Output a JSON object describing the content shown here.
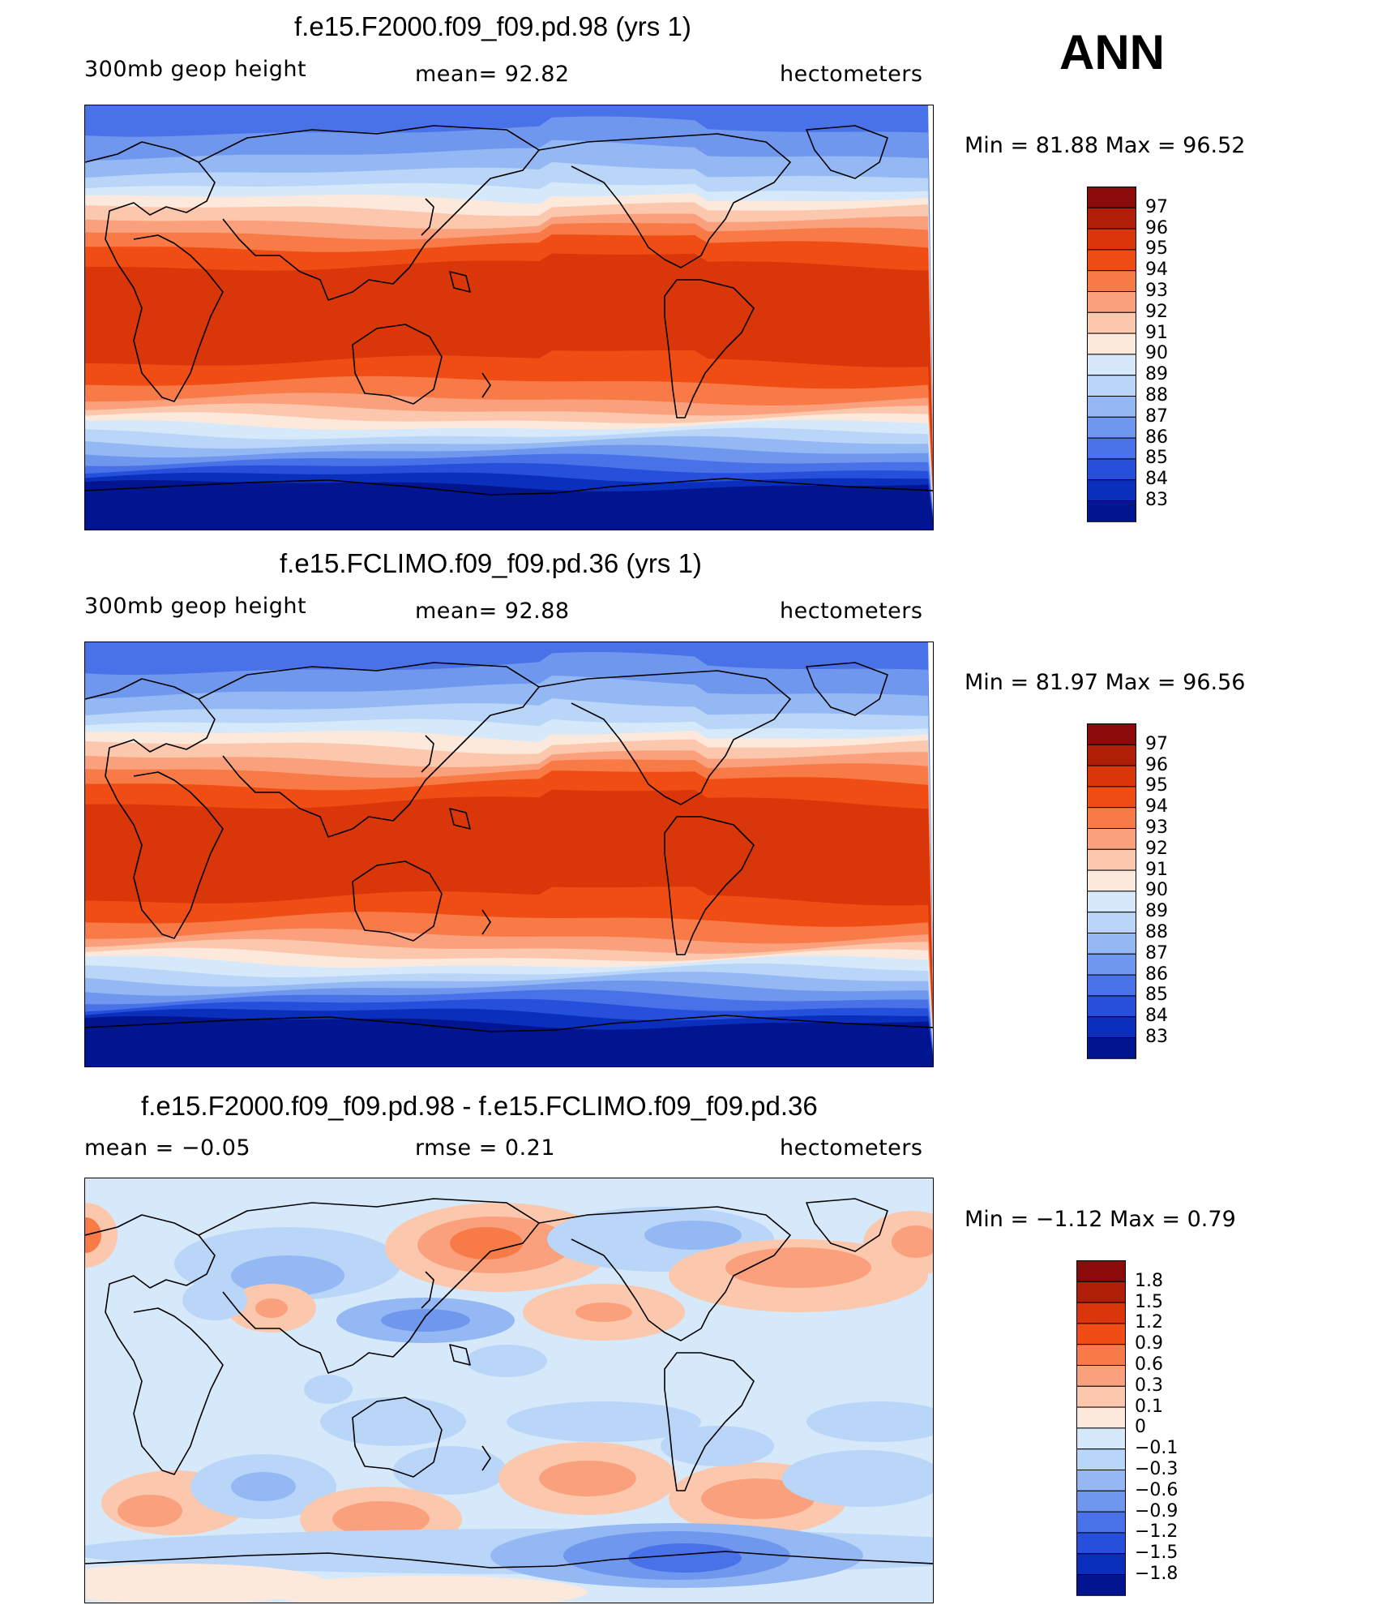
{
  "season": "ANN",
  "panels": [
    {
      "id": "case1",
      "title": "f.e15.F2000.f09_f09.pd.98 (yrs 1)",
      "left_label": "300mb geop height",
      "center_label": "mean=   92.82",
      "right_label": "hectometers",
      "minmax": "Min =   81.88  Max =   96.52",
      "field": "abs",
      "colorbar": {
        "labels": [
          "97",
          "96",
          "95",
          "94",
          "93",
          "92",
          "91",
          "90",
          "89",
          "88",
          "87",
          "86",
          "85",
          "84",
          "83"
        ],
        "colors": [
          "#8b0a0a",
          "#b01e08",
          "#d93609",
          "#f04d14",
          "#f77a47",
          "#fba07c",
          "#fcc8ad",
          "#fde9dc",
          "#d6e9fb",
          "#b9d5f7",
          "#94b8f3",
          "#6f97ee",
          "#4a72e8",
          "#2650dc",
          "#0b2fbd",
          "#021590"
        ]
      }
    },
    {
      "id": "case2",
      "title": "f.e15.FCLIMO.f09_f09.pd.36 (yrs 1)",
      "left_label": "300mb geop height",
      "center_label": "mean=   92.88",
      "right_label": "hectometers",
      "minmax": "Min =   81.97  Max =   96.56",
      "field": "abs",
      "colorbar": {
        "labels": [
          "97",
          "96",
          "95",
          "94",
          "93",
          "92",
          "91",
          "90",
          "89",
          "88",
          "87",
          "86",
          "85",
          "84",
          "83"
        ],
        "colors": [
          "#8b0a0a",
          "#b01e08",
          "#d93609",
          "#f04d14",
          "#f77a47",
          "#fba07c",
          "#fcc8ad",
          "#fde9dc",
          "#d6e9fb",
          "#b9d5f7",
          "#94b8f3",
          "#6f97ee",
          "#4a72e8",
          "#2650dc",
          "#0b2fbd",
          "#021590"
        ]
      }
    },
    {
      "id": "diff",
      "title": "f.e15.F2000.f09_f09.pd.98 - f.e15.FCLIMO.f09_f09.pd.36",
      "left_label": "mean =    −0.05",
      "center_label": "rmse =     0.21",
      "right_label": "hectometers",
      "minmax": "Min =   −1.12  Max =     0.79",
      "field": "diff",
      "colorbar": {
        "labels": [
          "1.8",
          "1.5",
          "1.2",
          "0.9",
          "0.6",
          "0.3",
          "0.1",
          "0",
          "−0.1",
          "−0.3",
          "−0.6",
          "−0.9",
          "−1.2",
          "−1.5",
          "−1.8"
        ],
        "colors": [
          "#8b0a0a",
          "#b01e08",
          "#d93609",
          "#f04d14",
          "#f77a47",
          "#fba07c",
          "#fcc8ad",
          "#fde9dc",
          "#d6e9fb",
          "#b9d5f7",
          "#94b8f3",
          "#6f97ee",
          "#4a72e8",
          "#2650dc",
          "#0b2fbd",
          "#021590"
        ]
      }
    }
  ]
}
